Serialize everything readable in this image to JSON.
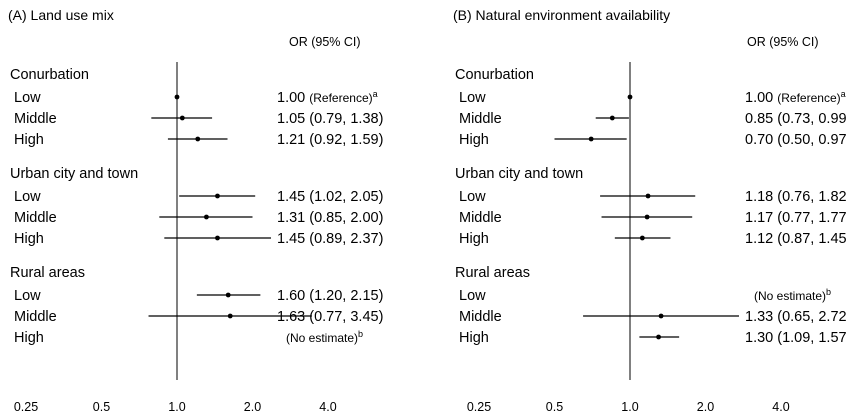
{
  "chart_data": [
    {
      "type": "forest",
      "title": "(A) Land use mix",
      "or_header": "OR (95% CI)",
      "xscale": "log2",
      "xlim": [
        0.21,
        4.8
      ],
      "reference_line": 1.0,
      "ticks": [
        0.25,
        0.5,
        1.0,
        2.0,
        4.0
      ],
      "tick_labels": [
        "0.25",
        "0.5",
        "1.0",
        "2.0",
        "4.0"
      ],
      "groups": [
        {
          "name": "Conurbation",
          "rows": [
            {
              "label": "Low",
              "or": 1.0,
              "lo": null,
              "hi": null,
              "text": "1.00 ",
              "ref": "(Reference)",
              "sup": "a"
            },
            {
              "label": "Middle",
              "or": 1.05,
              "lo": 0.79,
              "hi": 1.38,
              "text": "1.05 (0.79, 1.38)"
            },
            {
              "label": "High",
              "or": 1.21,
              "lo": 0.92,
              "hi": 1.59,
              "text": "1.21 (0.92, 1.59)"
            }
          ]
        },
        {
          "name": "Urban city and town",
          "rows": [
            {
              "label": "Low",
              "or": 1.45,
              "lo": 1.02,
              "hi": 2.05,
              "text": "1.45 (1.02, 2.05)"
            },
            {
              "label": "Middle",
              "or": 1.31,
              "lo": 0.85,
              "hi": 2.0,
              "text": "1.31 (0.85, 2.00)"
            },
            {
              "label": "High",
              "or": 1.45,
              "lo": 0.89,
              "hi": 2.37,
              "text": "1.45 (0.89, 2.37)"
            }
          ]
        },
        {
          "name": "Rural areas",
          "rows": [
            {
              "label": "Low",
              "or": 1.6,
              "lo": 1.2,
              "hi": 2.15,
              "text": "1.60 (1.20, 2.15)"
            },
            {
              "label": "Middle",
              "or": 1.63,
              "lo": 0.77,
              "hi": 3.45,
              "text": "1.63 (0.77, 3.45)"
            },
            {
              "label": "High",
              "or": null,
              "lo": null,
              "hi": null,
              "text": "(No estimate)",
              "sup": "b"
            }
          ]
        }
      ]
    },
    {
      "type": "forest",
      "title": "(B) Natural environment availability",
      "or_header": "OR (95% CI)",
      "xscale": "log2",
      "xlim": [
        0.21,
        4.8
      ],
      "reference_line": 1.0,
      "ticks": [
        0.25,
        0.5,
        1.0,
        2.0,
        4.0
      ],
      "tick_labels": [
        "0.25",
        "0.5",
        "1.0",
        "2.0",
        "4.0"
      ],
      "groups": [
        {
          "name": "Conurbation",
          "rows": [
            {
              "label": "Low",
              "or": 1.0,
              "lo": null,
              "hi": null,
              "text": "1.00 ",
              "ref": "(Reference)",
              "sup": "a"
            },
            {
              "label": "Middle",
              "or": 0.85,
              "lo": 0.73,
              "hi": 0.99,
              "text": "0.85 (0.73, 0.99"
            },
            {
              "label": "High",
              "or": 0.7,
              "lo": 0.5,
              "hi": 0.97,
              "text": "0.70 (0.50, 0.97"
            }
          ]
        },
        {
          "name": "Urban city and town",
          "rows": [
            {
              "label": "Low",
              "or": 1.18,
              "lo": 0.76,
              "hi": 1.82,
              "text": "1.18 (0.76, 1.82"
            },
            {
              "label": "Middle",
              "or": 1.17,
              "lo": 0.77,
              "hi": 1.77,
              "text": "1.17 (0.77, 1.77"
            },
            {
              "label": "High",
              "or": 1.12,
              "lo": 0.87,
              "hi": 1.45,
              "text": "1.12 (0.87, 1.45"
            }
          ]
        },
        {
          "name": "Rural areas",
          "rows": [
            {
              "label": "Low",
              "or": null,
              "lo": null,
              "hi": null,
              "text": "(No estimate)",
              "sup": "b"
            },
            {
              "label": "Middle",
              "or": 1.33,
              "lo": 0.65,
              "hi": 2.72,
              "text": "1.33 (0.65, 2.72"
            },
            {
              "label": "High",
              "or": 1.3,
              "lo": 1.09,
              "hi": 1.57,
              "text": "1.30 (1.09, 1.57"
            }
          ]
        }
      ]
    }
  ]
}
